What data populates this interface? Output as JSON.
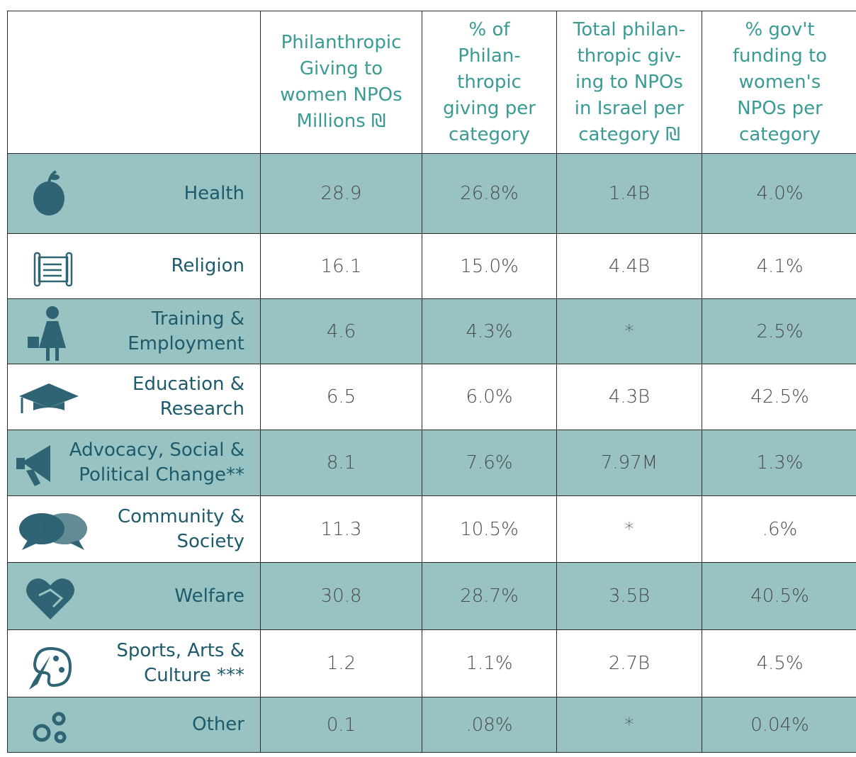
{
  "table": {
    "header": [
      "",
      "Philanthropic\nGiving to\nwomen NPOs\nMillions ₪",
      "% of\nPhilan-\nthropic\ngiving per\ncategory",
      "Total philan-\nthropic giv-\ning to NPOs\nin Israel per\ncategory ₪",
      "% gov't\nfunding to\nwomen's\nNPOs per\ncategory"
    ],
    "rows": [
      [
        "Health",
        "28.9",
        "26.8%",
        "1.4B",
        "4.0%"
      ],
      [
        "Religion",
        "16.1",
        "15.0%",
        "4.4B",
        "4.1%"
      ],
      [
        "Training &\nEmployment",
        "4.6",
        "4.3%",
        "*",
        "2.5%"
      ],
      [
        "Education &\nResearch",
        "6.5",
        "6.0%",
        "4.3B",
        "42.5%"
      ],
      [
        "Advocacy, Social &\nPolitical Change**",
        "8.1",
        "7.6%",
        "7.97M",
        "1.3%"
      ],
      [
        "Community &\nSociety",
        "11.3",
        "10.5%",
        "*",
        ".6%"
      ],
      [
        "Welfare",
        "30.8",
        "28.7%",
        "3.5B",
        "40.5%"
      ],
      [
        "Sports, Arts &\nCulture ***",
        "1.2",
        "1.1%",
        "2.7B",
        "4.5%"
      ],
      [
        "Other",
        "0.1",
        ".08%",
        "*",
        "0.04%"
      ]
    ]
  }
}
